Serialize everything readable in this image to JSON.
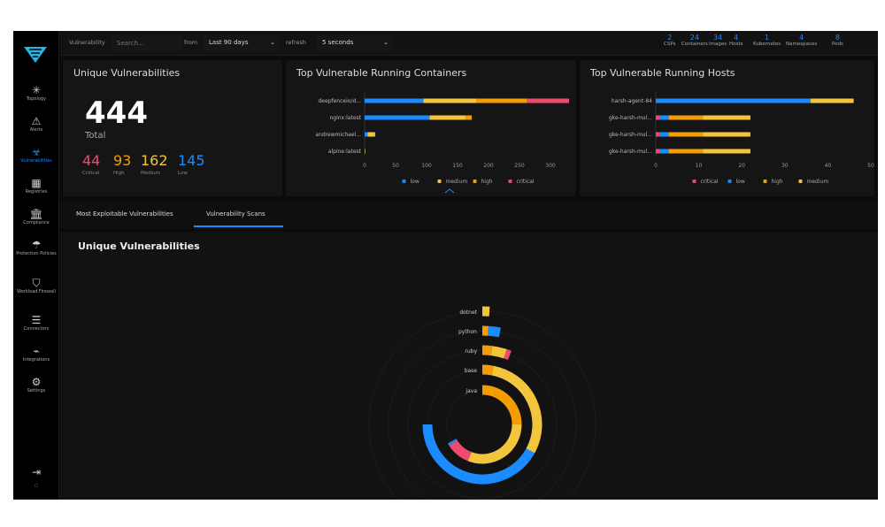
{
  "colors": {
    "critical": "#ee4a6e",
    "high": "#f59d00",
    "medium": "#f2c53d",
    "low": "#1a8cff",
    "accent": "#1a8cff"
  },
  "sidebar": {
    "items": [
      {
        "label": "Topology",
        "icon": "topology-icon",
        "glyph": "✳"
      },
      {
        "label": "Alerts",
        "icon": "alert-triangle-icon",
        "glyph": "⚠"
      },
      {
        "label": "Vulnerabilities",
        "icon": "biohazard-icon",
        "glyph": "☣",
        "active": true
      },
      {
        "label": "Registries",
        "icon": "registry-boxes-icon",
        "glyph": "▦"
      },
      {
        "label": "Compliance",
        "icon": "bank-icon",
        "glyph": "🏛"
      },
      {
        "label": "Protection Policies",
        "icon": "umbrella-icon",
        "glyph": "☂"
      },
      {
        "label": "Workload Firewall",
        "icon": "shield-icon",
        "glyph": "⛉"
      },
      {
        "label": "Connectors",
        "icon": "server-icon",
        "glyph": "☰"
      },
      {
        "label": "Integrations",
        "icon": "plug-icon",
        "glyph": "⌁"
      },
      {
        "label": "Settings",
        "icon": "gear-icon",
        "glyph": "⚙"
      }
    ],
    "logout_icon": "⇥",
    "collapse_icon": "▫"
  },
  "topbar": {
    "vuln_label": "Vulnerability",
    "search_placeholder": "Search...",
    "from_label": "from",
    "from_value": "Last 90 days",
    "refresh_label": "refresh",
    "refresh_value": "5 seconds",
    "stats": [
      {
        "v": "2",
        "l": "CSPs"
      },
      {
        "v": "24",
        "l": "Containers"
      },
      {
        "v": "34",
        "l": "Images"
      },
      {
        "v": "4",
        "l": "Hosts"
      },
      {
        "v": "1",
        "l": "Kubernetes"
      },
      {
        "v": "4",
        "l": "Namespaces"
      },
      {
        "v": "8",
        "l": "Pods"
      }
    ]
  },
  "summary": {
    "title": "Unique Vulnerabilities",
    "total": "444",
    "total_label": "Total",
    "severities": [
      {
        "v": "44",
        "l": "Critical"
      },
      {
        "v": "93",
        "l": "High"
      },
      {
        "v": "162",
        "l": "Medium"
      },
      {
        "v": "145",
        "l": "Low"
      }
    ]
  },
  "tabs": [
    {
      "label": "Most Exploitable Vulnerabilities"
    },
    {
      "label": "Vulnerability Scans",
      "active": true
    }
  ],
  "lower": {
    "title": "Unique Vulnerabilities"
  },
  "chart_data": [
    {
      "type": "bar",
      "orientation": "horizontal",
      "stacked": true,
      "title": "Top Vulnerable Running Containers",
      "categories": [
        "deepfenceio/d...",
        "nginx:latest",
        "andrewmichael...",
        "alpine:latest"
      ],
      "xlim": [
        0,
        350
      ],
      "xticks": [
        0,
        50,
        100,
        150,
        200,
        250,
        300,
        350
      ],
      "legend": "bottom",
      "series": [
        {
          "name": "low",
          "values": [
            95,
            105,
            5,
            0
          ]
        },
        {
          "name": "medium",
          "values": [
            85,
            58,
            12,
            1
          ]
        },
        {
          "name": "high",
          "values": [
            82,
            10,
            0,
            0
          ]
        },
        {
          "name": "critical",
          "values": [
            68,
            0,
            0,
            0
          ]
        }
      ]
    },
    {
      "type": "bar",
      "orientation": "horizontal",
      "stacked": true,
      "title": "Top Vulnerable Running Hosts",
      "categories": [
        "harsh-agent-84",
        "gke-harsh-mul...",
        "gke-harsh-mul...",
        "gke-harsh-mul..."
      ],
      "xlim": [
        0,
        50
      ],
      "xticks": [
        0,
        10,
        20,
        30,
        40,
        50
      ],
      "legend": "bottom",
      "series": [
        {
          "name": "critical",
          "values": [
            0,
            1,
            1,
            1
          ]
        },
        {
          "name": "low",
          "values": [
            36,
            2,
            2,
            2
          ]
        },
        {
          "name": "high",
          "values": [
            0,
            8,
            8,
            8
          ]
        },
        {
          "name": "medium",
          "values": [
            10,
            11,
            11,
            11
          ]
        }
      ]
    },
    {
      "type": "radial-bar",
      "stacked": true,
      "categories": [
        "dotnet",
        "python",
        "ruby",
        "base",
        "java"
      ],
      "series": [
        {
          "name": "high",
          "values": [
            0,
            1,
            2,
            3,
            25
          ]
        },
        {
          "name": "medium",
          "values": [
            1,
            0,
            3,
            30,
            31
          ]
        },
        {
          "name": "critical",
          "values": [
            0,
            0,
            1,
            0,
            10
          ]
        },
        {
          "name": "low",
          "values": [
            0,
            2,
            0,
            42,
            1
          ]
        }
      ]
    }
  ]
}
